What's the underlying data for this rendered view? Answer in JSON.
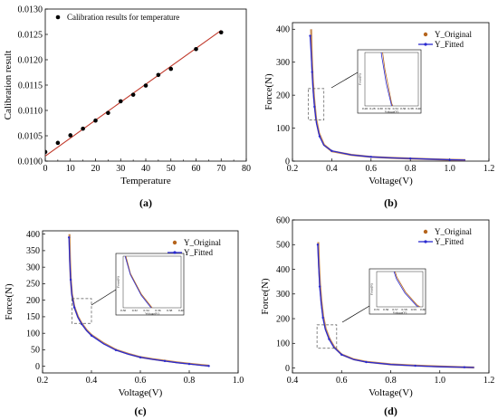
{
  "chart_data": [
    {
      "panel": "a",
      "panel_label": "(a)",
      "type": "scatter",
      "title": "",
      "xlabel": "Temperature",
      "ylabel": "Calibration result",
      "xlim": [
        0,
        80
      ],
      "ylim": [
        0.01,
        0.013
      ],
      "xticks": [
        0,
        10,
        20,
        30,
        40,
        50,
        60,
        70,
        80
      ],
      "yticks": [
        0.01,
        0.0105,
        0.011,
        0.0115,
        0.012,
        0.0125,
        0.013
      ],
      "xtick_labels": [
        "0",
        "10",
        "20",
        "30",
        "40",
        "50",
        "60",
        "70",
        "80"
      ],
      "ytick_labels": [
        "0.0100",
        "0.0105",
        "0.0110",
        "0.0115",
        "0.0120",
        "0.0125",
        "0.0130"
      ],
      "legend": {
        "position": "top-left",
        "entries": [
          "Calibration results for temperature"
        ]
      },
      "series": [
        {
          "name": "Calibration results for temperature",
          "kind": "points",
          "x": [
            0,
            5,
            10,
            15,
            20,
            25,
            30,
            35,
            40,
            45,
            50,
            60,
            70
          ],
          "y": [
            0.01018,
            0.01036,
            0.01051,
            0.01064,
            0.0108,
            0.01095,
            0.01118,
            0.01131,
            0.01149,
            0.0117,
            0.01182,
            0.01221,
            0.01254
          ]
        },
        {
          "kind": "fit-line",
          "x": [
            0,
            70
          ],
          "y": [
            0.0101,
            0.01258
          ]
        }
      ],
      "colors": {
        "points": "#000000",
        "line": "#c0392b"
      }
    },
    {
      "panel": "b",
      "panel_label": "(b)",
      "type": "line",
      "xlabel": "Voltage(V)",
      "ylabel": "Force(N)",
      "xlim": [
        0.2,
        1.2
      ],
      "ylim": [
        0,
        420
      ],
      "xticks": [
        0.2,
        0.4,
        0.6,
        0.8,
        1.0,
        1.2
      ],
      "yticks": [
        0,
        100,
        200,
        300,
        400
      ],
      "xtick_labels": [
        "0.2",
        "0.4",
        "0.6",
        "0.8",
        "1.0",
        "1.2"
      ],
      "ytick_labels": [
        "0",
        "100",
        "200",
        "300",
        "400"
      ],
      "legend": {
        "position": "top-right",
        "entries": [
          "Y_Original",
          "Y_Fitted"
        ]
      },
      "series": [
        {
          "name": "Y_Original",
          "x": [
            0.295,
            0.298,
            0.303,
            0.31,
            0.32,
            0.335,
            0.36,
            0.4,
            0.5,
            0.6,
            0.7,
            0.8,
            0.9,
            1.0,
            1.08
          ],
          "y": [
            400,
            320,
            250,
            190,
            130,
            85,
            50,
            30,
            19,
            13,
            10,
            8,
            6,
            4,
            3
          ]
        },
        {
          "name": "Y_Fitted",
          "x": [
            0.29,
            0.295,
            0.3,
            0.305,
            0.312,
            0.322,
            0.338,
            0.36,
            0.4,
            0.5,
            0.6,
            0.7,
            0.8,
            0.9,
            1.0,
            1.08
          ],
          "y": [
            380,
            330,
            270,
            215,
            165,
            115,
            75,
            48,
            31,
            19,
            13,
            10,
            8,
            6,
            4,
            3
          ]
        }
      ],
      "zoom_box": {
        "x": [
          0.28,
          0.36
        ],
        "y": [
          125,
          220
        ]
      },
      "inset": {
        "xtick_labels": [
          "0.26",
          "0.28",
          "0.30",
          "0.32",
          "0.34",
          "0.36",
          "0.38",
          "0.40"
        ],
        "xlabel": "Voltage(V)",
        "ylabel": "Force(N)"
      },
      "colors": {
        "original": "#b5651d",
        "fitted": "#2a2ad0"
      }
    },
    {
      "panel": "c",
      "panel_label": "(c)",
      "type": "line",
      "xlabel": "Voltage(V)",
      "ylabel": "Force(N)",
      "xlim": [
        0.2,
        1.0
      ],
      "ylim": [
        -20,
        410
      ],
      "xticks": [
        0.2,
        0.4,
        0.6,
        0.8,
        1.0
      ],
      "yticks": [
        0,
        50,
        100,
        150,
        200,
        250,
        300,
        350,
        400
      ],
      "xtick_labels": [
        "0.2",
        "0.4",
        "0.6",
        "0.8",
        "1.0"
      ],
      "ytick_labels": [
        "0",
        "50",
        "100",
        "150",
        "200",
        "250",
        "300",
        "350",
        "400"
      ],
      "legend": {
        "position": "top-right",
        "entries": [
          "Y_Original",
          "Y_Fitted"
        ]
      },
      "series": [
        {
          "name": "Y_Original",
          "x": [
            0.31,
            0.312,
            0.315,
            0.32,
            0.33,
            0.345,
            0.36,
            0.38,
            0.4,
            0.45,
            0.5,
            0.55,
            0.6,
            0.65,
            0.7,
            0.75,
            0.8,
            0.85,
            0.88
          ],
          "y": [
            400,
            330,
            270,
            220,
            180,
            150,
            130,
            110,
            95,
            70,
            50,
            38,
            28,
            22,
            17,
            12,
            8,
            4,
            2
          ]
        },
        {
          "name": "Y_Fitted",
          "x": [
            0.308,
            0.311,
            0.315,
            0.32,
            0.33,
            0.345,
            0.36,
            0.38,
            0.4,
            0.45,
            0.5,
            0.55,
            0.6,
            0.65,
            0.7,
            0.75,
            0.8,
            0.85,
            0.88
          ],
          "y": [
            390,
            320,
            262,
            215,
            178,
            148,
            128,
            108,
            93,
            68,
            49,
            37,
            27,
            21,
            16,
            11,
            7,
            3,
            1
          ]
        }
      ],
      "zoom_box": {
        "x": [
          0.32,
          0.4
        ],
        "y": [
          130,
          205
        ]
      },
      "inset": {
        "xtick_labels": [
          "0.30",
          "0.32",
          "0.34",
          "0.36",
          "0.38",
          "0.40"
        ],
        "xlabel": "Voltage(V)",
        "ylabel": "Force(N)"
      },
      "colors": {
        "original": "#b5651d",
        "fitted": "#2a2ad0"
      }
    },
    {
      "panel": "d",
      "panel_label": "(d)",
      "type": "line",
      "xlabel": "Voltage(V)",
      "ylabel": "Force(N)",
      "xlim": [
        0.4,
        1.2
      ],
      "ylim": [
        -20,
        600
      ],
      "xticks": [
        0.4,
        0.6,
        0.8,
        1.0,
        1.2
      ],
      "yticks": [
        0,
        100,
        200,
        300,
        400,
        500,
        600
      ],
      "xtick_labels": [
        "0.4",
        "0.6",
        "0.8",
        "1.0",
        "1.2"
      ],
      "ytick_labels": [
        "0",
        "100",
        "200",
        "300",
        "400",
        "500",
        "600"
      ],
      "legend": {
        "position": "top-right",
        "entries": [
          "Y_Original",
          "Y_Fitted"
        ]
      },
      "series": [
        {
          "name": "Y_Original",
          "x": [
            0.505,
            0.508,
            0.512,
            0.518,
            0.525,
            0.535,
            0.55,
            0.57,
            0.6,
            0.65,
            0.7,
            0.8,
            0.9,
            1.0,
            1.1,
            1.14
          ],
          "y": [
            510,
            420,
            340,
            270,
            210,
            160,
            120,
            85,
            55,
            35,
            25,
            15,
            10,
            6,
            3,
            2
          ]
        },
        {
          "name": "Y_Fitted",
          "x": [
            0.503,
            0.507,
            0.511,
            0.517,
            0.524,
            0.534,
            0.549,
            0.569,
            0.6,
            0.65,
            0.7,
            0.8,
            0.9,
            1.0,
            1.1,
            1.14
          ],
          "y": [
            500,
            410,
            330,
            262,
            204,
            156,
            117,
            83,
            54,
            34,
            24,
            14,
            9,
            5,
            3,
            2
          ]
        }
      ],
      "zoom_box": {
        "x": [
          0.5,
          0.58
        ],
        "y": [
          80,
          175
        ]
      },
      "inset": {
        "xtick_labels": [
          "0.55",
          "0.56",
          "0.57",
          "0.58",
          "0.59",
          "0.60"
        ],
        "xlabel": "Voltage(V)",
        "ylabel": "Force(N)"
      },
      "colors": {
        "original": "#b5651d",
        "fitted": "#2a2ad0"
      }
    }
  ]
}
